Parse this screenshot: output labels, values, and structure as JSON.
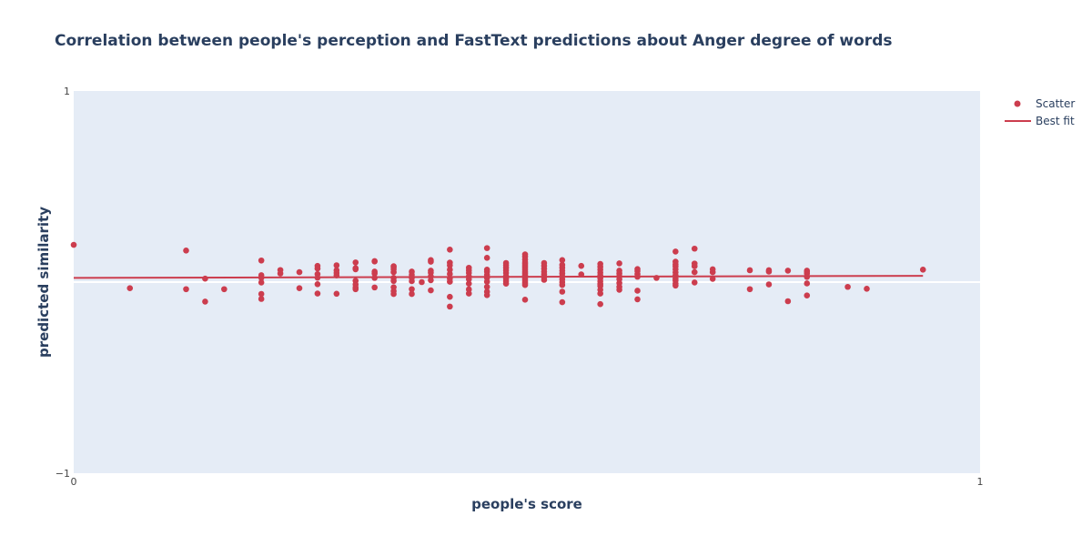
{
  "chart_data": {
    "type": "scatter",
    "title": "Correlation between people's perception and FastText predictions about Anger degree of words",
    "xlabel": "people's score",
    "ylabel": "predicted similarity",
    "xlim": [
      0,
      1
    ],
    "ylim": [
      -1,
      1
    ],
    "x_ticks": [
      "0",
      "1"
    ],
    "y_ticks": [
      "1",
      "−1"
    ],
    "grid": false,
    "legend_position": "top-right",
    "colors": {
      "plot_bg": "#e5ecf6",
      "marker": "#cc3d4e",
      "zero_line": "#ffffff",
      "text": "#2a3f5f"
    },
    "series": [
      {
        "name": "Scatter",
        "mode": "markers",
        "points": [
          [
            0.0,
            0.195
          ],
          [
            0.062,
            -0.032
          ],
          [
            0.124,
            0.165
          ],
          [
            0.124,
            -0.037
          ],
          [
            0.145,
            0.018
          ],
          [
            0.145,
            -0.102
          ],
          [
            0.166,
            -0.037
          ],
          [
            0.207,
            0.113
          ],
          [
            0.207,
            0.036
          ],
          [
            0.207,
            0.022
          ],
          [
            0.207,
            -0.002
          ],
          [
            0.207,
            -0.062
          ],
          [
            0.207,
            -0.088
          ],
          [
            0.228,
            0.063
          ],
          [
            0.228,
            0.045
          ],
          [
            0.249,
            0.052
          ],
          [
            0.249,
            -0.032
          ],
          [
            0.269,
            0.085
          ],
          [
            0.269,
            0.071
          ],
          [
            0.269,
            0.042
          ],
          [
            0.269,
            0.023
          ],
          [
            0.269,
            -0.011
          ],
          [
            0.269,
            -0.06
          ],
          [
            0.29,
            0.088
          ],
          [
            0.29,
            0.062
          ],
          [
            0.29,
            0.048
          ],
          [
            0.29,
            0.035
          ],
          [
            0.29,
            -0.061
          ],
          [
            0.311,
            0.103
          ],
          [
            0.311,
            0.073
          ],
          [
            0.311,
            0.067
          ],
          [
            0.311,
            0.007
          ],
          [
            0.311,
            -0.012
          ],
          [
            0.311,
            -0.028
          ],
          [
            0.311,
            -0.037
          ],
          [
            0.332,
            0.11
          ],
          [
            0.332,
            0.108
          ],
          [
            0.332,
            0.055
          ],
          [
            0.332,
            0.045
          ],
          [
            0.332,
            0.022
          ],
          [
            0.332,
            -0.028
          ],
          [
            0.353,
            0.083
          ],
          [
            0.353,
            0.077
          ],
          [
            0.353,
            0.067
          ],
          [
            0.353,
            0.052
          ],
          [
            0.353,
            0.022
          ],
          [
            0.353,
            0.006
          ],
          [
            0.353,
            -0.027
          ],
          [
            0.353,
            -0.047
          ],
          [
            0.353,
            -0.062
          ],
          [
            0.373,
            0.055
          ],
          [
            0.373,
            0.038
          ],
          [
            0.373,
            0.022
          ],
          [
            0.373,
            0.005
          ],
          [
            0.373,
            -0.037
          ],
          [
            0.373,
            -0.062
          ],
          [
            0.384,
            0.0
          ],
          [
            0.394,
            0.115
          ],
          [
            0.394,
            0.107
          ],
          [
            0.394,
            0.06
          ],
          [
            0.394,
            0.05
          ],
          [
            0.394,
            0.03
          ],
          [
            0.394,
            0.01
          ],
          [
            0.394,
            -0.043
          ],
          [
            0.415,
            0.17
          ],
          [
            0.415,
            0.102
          ],
          [
            0.415,
            0.088
          ],
          [
            0.415,
            0.065
          ],
          [
            0.415,
            0.043
          ],
          [
            0.415,
            0.018
          ],
          [
            0.415,
            0.002
          ],
          [
            0.415,
            -0.077
          ],
          [
            0.415,
            -0.128
          ],
          [
            0.436,
            0.075
          ],
          [
            0.436,
            0.062
          ],
          [
            0.436,
            0.048
          ],
          [
            0.436,
            0.03
          ],
          [
            0.436,
            0.015
          ],
          [
            0.436,
            -0.008
          ],
          [
            0.436,
            -0.038
          ],
          [
            0.436,
            -0.06
          ],
          [
            0.456,
            0.178
          ],
          [
            0.456,
            0.127
          ],
          [
            0.456,
            0.065
          ],
          [
            0.456,
            0.055
          ],
          [
            0.456,
            0.038
          ],
          [
            0.456,
            0.022
          ],
          [
            0.456,
            0.002
          ],
          [
            0.456,
            -0.025
          ],
          [
            0.456,
            -0.05
          ],
          [
            0.456,
            -0.068
          ],
          [
            0.477,
            0.1
          ],
          [
            0.477,
            0.088
          ],
          [
            0.477,
            0.075
          ],
          [
            0.477,
            0.062
          ],
          [
            0.477,
            0.048
          ],
          [
            0.477,
            0.032
          ],
          [
            0.477,
            0.018
          ],
          [
            0.477,
            0.005
          ],
          [
            0.477,
            -0.008
          ],
          [
            0.498,
            0.145
          ],
          [
            0.498,
            0.133
          ],
          [
            0.498,
            0.118
          ],
          [
            0.498,
            0.105
          ],
          [
            0.498,
            0.095
          ],
          [
            0.498,
            0.085
          ],
          [
            0.498,
            0.075
          ],
          [
            0.498,
            0.065
          ],
          [
            0.498,
            0.055
          ],
          [
            0.498,
            0.045
          ],
          [
            0.498,
            0.035
          ],
          [
            0.498,
            0.025
          ],
          [
            0.498,
            0.015
          ],
          [
            0.498,
            0.005
          ],
          [
            0.498,
            -0.005
          ],
          [
            0.498,
            -0.015
          ],
          [
            0.498,
            -0.092
          ],
          [
            0.519,
            0.1
          ],
          [
            0.519,
            0.085
          ],
          [
            0.519,
            0.07
          ],
          [
            0.519,
            0.055
          ],
          [
            0.519,
            0.04
          ],
          [
            0.519,
            0.025
          ],
          [
            0.519,
            0.012
          ],
          [
            0.539,
            0.115
          ],
          [
            0.539,
            0.09
          ],
          [
            0.539,
            0.075
          ],
          [
            0.539,
            0.06
          ],
          [
            0.539,
            0.045
          ],
          [
            0.539,
            0.03
          ],
          [
            0.539,
            0.015
          ],
          [
            0.539,
            0.0
          ],
          [
            0.539,
            -0.015
          ],
          [
            0.539,
            -0.05
          ],
          [
            0.539,
            -0.105
          ],
          [
            0.56,
            0.085
          ],
          [
            0.56,
            0.04
          ],
          [
            0.581,
            0.095
          ],
          [
            0.581,
            0.08
          ],
          [
            0.581,
            0.065
          ],
          [
            0.581,
            0.05
          ],
          [
            0.581,
            0.035
          ],
          [
            0.581,
            0.02
          ],
          [
            0.581,
            0.005
          ],
          [
            0.581,
            -0.01
          ],
          [
            0.581,
            -0.02
          ],
          [
            0.581,
            -0.04
          ],
          [
            0.581,
            -0.06
          ],
          [
            0.581,
            -0.115
          ],
          [
            0.602,
            0.098
          ],
          [
            0.602,
            0.06
          ],
          [
            0.602,
            0.045
          ],
          [
            0.602,
            0.03
          ],
          [
            0.602,
            0.015
          ],
          [
            0.602,
            -0.005
          ],
          [
            0.602,
            -0.025
          ],
          [
            0.602,
            -0.04
          ],
          [
            0.622,
            0.068
          ],
          [
            0.622,
            0.058
          ],
          [
            0.622,
            0.042
          ],
          [
            0.622,
            0.028
          ],
          [
            0.622,
            -0.045
          ],
          [
            0.622,
            -0.09
          ],
          [
            0.643,
            0.022
          ],
          [
            0.664,
            0.16
          ],
          [
            0.664,
            0.107
          ],
          [
            0.664,
            0.093
          ],
          [
            0.664,
            0.082
          ],
          [
            0.664,
            0.067
          ],
          [
            0.664,
            0.051
          ],
          [
            0.664,
            0.035
          ],
          [
            0.664,
            0.018
          ],
          [
            0.664,
            0.008
          ],
          [
            0.664,
            -0.008
          ],
          [
            0.664,
            -0.018
          ],
          [
            0.685,
            0.175
          ],
          [
            0.685,
            0.097
          ],
          [
            0.685,
            0.083
          ],
          [
            0.685,
            0.052
          ],
          [
            0.685,
            -0.002
          ],
          [
            0.705,
            0.067
          ],
          [
            0.705,
            0.052
          ],
          [
            0.705,
            0.017
          ],
          [
            0.746,
            0.062
          ],
          [
            0.746,
            -0.037
          ],
          [
            0.767,
            0.062
          ],
          [
            0.767,
            0.055
          ],
          [
            0.767,
            -0.012
          ],
          [
            0.788,
            0.06
          ],
          [
            0.788,
            -0.1
          ],
          [
            0.809,
            0.06
          ],
          [
            0.809,
            0.055
          ],
          [
            0.809,
            0.045
          ],
          [
            0.809,
            0.027
          ],
          [
            0.809,
            -0.007
          ],
          [
            0.809,
            -0.07
          ],
          [
            0.854,
            -0.025
          ],
          [
            0.875,
            -0.035
          ],
          [
            0.937,
            0.065
          ]
        ]
      },
      {
        "name": "Best fit",
        "mode": "lines",
        "points": [
          [
            0.0,
            0.022
          ],
          [
            0.937,
            0.033
          ]
        ]
      }
    ]
  }
}
